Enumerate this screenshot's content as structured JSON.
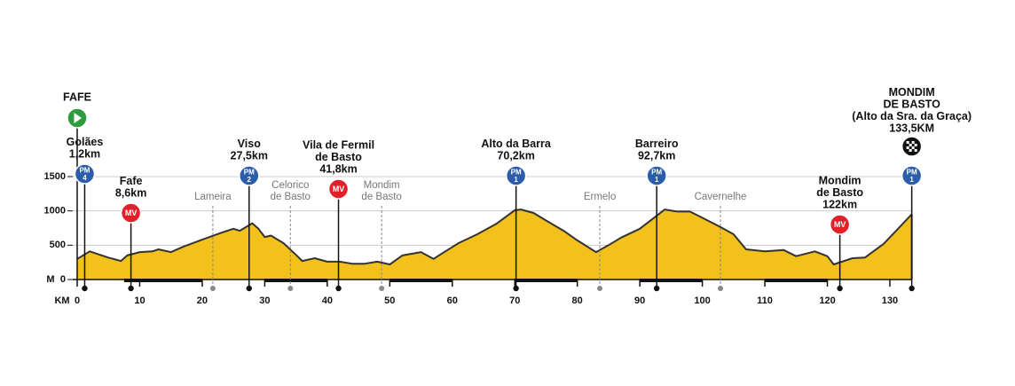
{
  "chart_data": {
    "type": "area",
    "x_label": "KM",
    "y_label": "M",
    "color": "#f2c11c",
    "line_color": "#333333",
    "x": [
      0,
      2,
      5,
      7,
      8,
      10,
      12,
      13,
      15,
      17,
      20,
      23,
      25,
      26,
      28,
      29,
      30,
      31,
      33,
      35,
      36,
      38,
      40,
      42,
      44,
      46,
      48,
      50,
      52,
      55,
      57,
      58,
      61,
      64,
      67,
      70,
      71,
      73,
      75,
      78,
      80,
      83,
      85,
      87,
      90,
      92,
      94,
      96,
      98,
      100,
      103,
      105,
      107,
      110,
      113,
      115,
      118,
      120,
      121,
      124,
      126,
      129,
      131,
      133.5
    ],
    "values": [
      300,
      410,
      320,
      270,
      350,
      400,
      410,
      440,
      400,
      480,
      580,
      680,
      740,
      710,
      820,
      740,
      620,
      640,
      530,
      360,
      270,
      310,
      260,
      260,
      230,
      230,
      260,
      220,
      350,
      400,
      300,
      360,
      530,
      660,
      810,
      1010,
      1020,
      970,
      860,
      700,
      570,
      400,
      500,
      610,
      740,
      880,
      1020,
      990,
      990,
      900,
      760,
      660,
      440,
      410,
      430,
      340,
      410,
      340,
      220,
      310,
      320,
      520,
      710,
      950
    ],
    "xlim": [
      0,
      133.5
    ],
    "ylim": [
      0,
      1500
    ],
    "xticks": [
      0,
      10,
      20,
      30,
      40,
      50,
      60,
      70,
      80,
      90,
      100,
      110,
      120,
      130
    ],
    "yticks": [
      0,
      500,
      1000,
      1500
    ],
    "grid": true,
    "start": {
      "name": "FAFE",
      "km": 0
    },
    "waypoints": [
      {
        "kind": "climb",
        "lines": [
          "Golães",
          "1,2km"
        ],
        "km": 1.2,
        "badge": "PM",
        "category": "4"
      },
      {
        "kind": "sprint",
        "lines": [
          "Fafe",
          "8,6km"
        ],
        "km": 8.6,
        "badge": "MV"
      },
      {
        "kind": "place",
        "lines": [
          "Lameira"
        ],
        "km": 21.7
      },
      {
        "kind": "climb",
        "lines": [
          "Viso",
          "27,5km"
        ],
        "km": 27.5,
        "badge": "PM",
        "category": "2"
      },
      {
        "kind": "place",
        "lines": [
          "Celorico",
          "de Basto"
        ],
        "km": 34.1
      },
      {
        "kind": "sprint",
        "lines": [
          "Vila de Fermil",
          "de Basto",
          "41,8km"
        ],
        "km": 41.8,
        "badge": "MV"
      },
      {
        "kind": "place",
        "lines": [
          "Mondim",
          "de Basto"
        ],
        "km": 48.7
      },
      {
        "kind": "climb",
        "lines": [
          "Alto da Barra",
          "70,2km"
        ],
        "km": 70.2,
        "badge": "PM",
        "category": "1"
      },
      {
        "kind": "place",
        "lines": [
          "Ermelo"
        ],
        "km": 83.6
      },
      {
        "kind": "climb",
        "lines": [
          "Barreiro",
          "92,7km"
        ],
        "km": 92.7,
        "badge": "PM",
        "category": "1"
      },
      {
        "kind": "place",
        "lines": [
          "Cavernelhe"
        ],
        "km": 102.9
      },
      {
        "kind": "sprint",
        "lines": [
          "Mondim",
          "de Basto",
          "122km"
        ],
        "km": 122,
        "badge": "MV"
      },
      {
        "kind": "finish",
        "lines": [
          "MONDIM",
          "DE BASTO",
          "(Alto da Sra. da Graça)",
          "133,5KM"
        ],
        "km": 133.5,
        "badge": "PM",
        "category": "1"
      }
    ]
  }
}
